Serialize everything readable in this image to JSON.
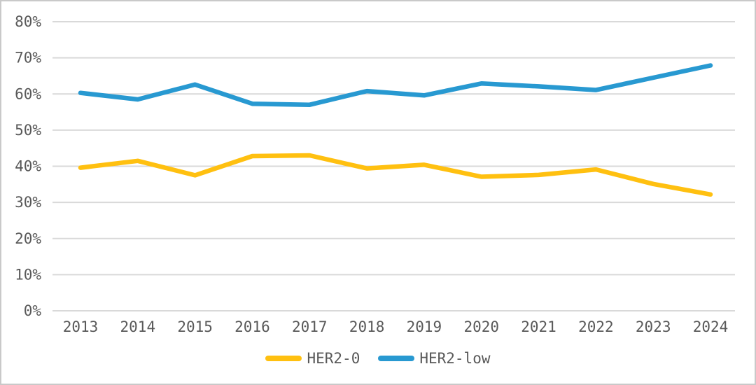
{
  "chart_data": {
    "type": "line",
    "title": "",
    "xlabel": "",
    "ylabel": "",
    "categories": [
      "2013",
      "2014",
      "2015",
      "2016",
      "2017",
      "2018",
      "2019",
      "2020",
      "2021",
      "2022",
      "2023",
      "2024"
    ],
    "series": [
      {
        "name": "HER2-0",
        "color": "#FFC010",
        "values": [
          39.6,
          41.5,
          37.5,
          42.8,
          43.0,
          39.4,
          40.4,
          37.1,
          37.6,
          39.1,
          35.1,
          32.2
        ]
      },
      {
        "name": "HER2-low",
        "color": "#2899D1",
        "values": [
          60.3,
          58.5,
          62.6,
          57.3,
          57.0,
          60.8,
          59.6,
          62.9,
          62.1,
          61.1,
          64.5,
          67.9
        ]
      }
    ],
    "ylim": [
      0,
      80
    ],
    "y_tick_step": 10,
    "y_ticks": [
      "0%",
      "10%",
      "20%",
      "30%",
      "40%",
      "50%",
      "60%",
      "70%",
      "80%"
    ],
    "grid": "horizontal",
    "legend_position": "bottom",
    "text_color": "#595959",
    "gridline_color": "#d9d9d9"
  }
}
